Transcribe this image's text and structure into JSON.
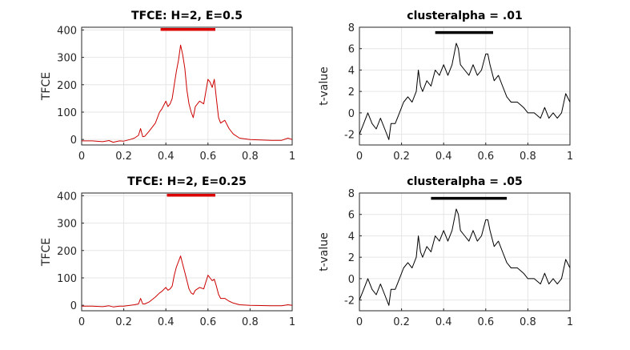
{
  "chart_data": [
    {
      "type": "line",
      "title": "TFCE: H=2, E=0.5",
      "xlabel": "",
      "ylabel": "TFCE",
      "xlim": [
        0,
        1
      ],
      "ylim": [
        -20,
        410
      ],
      "xticks": [
        "0",
        "0.2",
        "0.4",
        "0.6",
        "0.8",
        "1"
      ],
      "yticks": [
        "0",
        "100",
        "200",
        "300",
        "400"
      ],
      "grid": true,
      "line_color": "#cc0000",
      "bar_color": "#dd0000",
      "significance_bar": [
        0.375,
        0.635
      ],
      "bar_level": 402,
      "series": [
        {
          "name": "TFCE",
          "x": [
            0,
            0.05,
            0.1,
            0.13,
            0.15,
            0.18,
            0.2,
            0.23,
            0.25,
            0.27,
            0.28,
            0.29,
            0.3,
            0.32,
            0.35,
            0.37,
            0.38,
            0.4,
            0.41,
            0.42,
            0.43,
            0.44,
            0.45,
            0.46,
            0.47,
            0.48,
            0.49,
            0.5,
            0.51,
            0.52,
            0.53,
            0.54,
            0.56,
            0.58,
            0.6,
            0.61,
            0.62,
            0.63,
            0.64,
            0.65,
            0.66,
            0.68,
            0.7,
            0.72,
            0.75,
            0.8,
            0.85,
            0.9,
            0.95,
            0.98,
            1.0
          ],
          "y": [
            -5,
            -5,
            -8,
            -4,
            -10,
            -5,
            -6,
            0,
            5,
            15,
            40,
            10,
            12,
            30,
            60,
            100,
            110,
            140,
            120,
            130,
            150,
            200,
            250,
            290,
            345,
            310,
            260,
            180,
            130,
            100,
            80,
            120,
            140,
            130,
            220,
            210,
            190,
            220,
            150,
            80,
            60,
            70,
            40,
            20,
            5,
            0,
            -2,
            -3,
            -3,
            5,
            0
          ]
        }
      ]
    },
    {
      "type": "line",
      "title": "clusteralpha = .01",
      "xlabel": "",
      "ylabel": "t-value",
      "xlim": [
        0,
        1
      ],
      "ylim": [
        -3,
        8
      ],
      "xticks": [
        "0",
        "0.2",
        "0.4",
        "0.6",
        "0.8",
        "1"
      ],
      "yticks": [
        "-2",
        "0",
        "2",
        "4",
        "6",
        "8"
      ],
      "grid": true,
      "line_color": "#000000",
      "bar_color": "#000000",
      "significance_bar": [
        0.36,
        0.635
      ],
      "bar_level": 7.5,
      "series": [
        {
          "name": "t-value",
          "x": [
            0,
            0.02,
            0.04,
            0.06,
            0.08,
            0.1,
            0.12,
            0.14,
            0.15,
            0.17,
            0.19,
            0.21,
            0.23,
            0.25,
            0.27,
            0.28,
            0.29,
            0.3,
            0.32,
            0.34,
            0.36,
            0.38,
            0.4,
            0.42,
            0.44,
            0.46,
            0.47,
            0.48,
            0.5,
            0.52,
            0.54,
            0.56,
            0.58,
            0.6,
            0.61,
            0.62,
            0.64,
            0.66,
            0.68,
            0.7,
            0.72,
            0.75,
            0.78,
            0.8,
            0.83,
            0.86,
            0.88,
            0.9,
            0.92,
            0.94,
            0.96,
            0.98,
            1.0
          ],
          "y": [
            -2,
            -1,
            0,
            -1,
            -1.5,
            -0.5,
            -1.5,
            -2.5,
            -1,
            -1,
            0,
            1,
            1.5,
            1,
            2,
            4,
            2.5,
            2,
            3,
            2.5,
            4,
            3.5,
            4.5,
            3.5,
            4.5,
            6.5,
            6,
            4.5,
            4,
            3.5,
            4.5,
            3.5,
            4,
            5.5,
            5.5,
            4.5,
            3,
            3.5,
            2.5,
            1.5,
            1,
            1,
            0.5,
            0,
            0,
            -0.5,
            0.5,
            -0.5,
            0,
            -0.5,
            0,
            1.8,
            1
          ]
        }
      ]
    },
    {
      "type": "line",
      "title": "TFCE: H=2, E=0.25",
      "xlabel": "",
      "ylabel": "TFCE",
      "xlim": [
        0,
        1
      ],
      "ylim": [
        -20,
        410
      ],
      "xticks": [
        "0",
        "0.2",
        "0.4",
        "0.6",
        "0.8",
        "1"
      ],
      "yticks": [
        "0",
        "100",
        "200",
        "300",
        "400"
      ],
      "grid": true,
      "line_color": "#cc0000",
      "bar_color": "#dd0000",
      "significance_bar": [
        0.405,
        0.635
      ],
      "bar_level": 402,
      "series": [
        {
          "name": "TFCE",
          "x": [
            0,
            0.05,
            0.1,
            0.13,
            0.15,
            0.18,
            0.2,
            0.23,
            0.25,
            0.27,
            0.28,
            0.29,
            0.3,
            0.32,
            0.35,
            0.37,
            0.38,
            0.4,
            0.41,
            0.42,
            0.43,
            0.44,
            0.45,
            0.46,
            0.47,
            0.48,
            0.49,
            0.5,
            0.51,
            0.52,
            0.53,
            0.54,
            0.56,
            0.58,
            0.6,
            0.61,
            0.62,
            0.63,
            0.64,
            0.65,
            0.66,
            0.68,
            0.7,
            0.72,
            0.75,
            0.8,
            0.85,
            0.9,
            0.95,
            0.98,
            1.0
          ],
          "y": [
            -3,
            -3,
            -5,
            -2,
            -6,
            -3,
            -3,
            0,
            2,
            5,
            25,
            5,
            5,
            12,
            30,
            45,
            50,
            65,
            55,
            60,
            70,
            110,
            140,
            160,
            180,
            150,
            120,
            90,
            60,
            45,
            40,
            55,
            65,
            60,
            110,
            100,
            90,
            95,
            70,
            40,
            25,
            25,
            15,
            8,
            2,
            0,
            -1,
            -2,
            -2,
            2,
            0
          ]
        }
      ]
    },
    {
      "type": "line",
      "title": "clusteralpha = .05",
      "xlabel": "",
      "ylabel": "t-value",
      "xlim": [
        0,
        1
      ],
      "ylim": [
        -3,
        8
      ],
      "xticks": [
        "0",
        "0.2",
        "0.4",
        "0.6",
        "0.8",
        "1"
      ],
      "yticks": [
        "-2",
        "0",
        "2",
        "4",
        "6",
        "8"
      ],
      "grid": true,
      "line_color": "#000000",
      "bar_color": "#000000",
      "significance_bar": [
        0.34,
        0.7
      ],
      "bar_level": 7.5,
      "series": [
        {
          "name": "t-value",
          "x": [
            0,
            0.02,
            0.04,
            0.06,
            0.08,
            0.1,
            0.12,
            0.14,
            0.15,
            0.17,
            0.19,
            0.21,
            0.23,
            0.25,
            0.27,
            0.28,
            0.29,
            0.3,
            0.32,
            0.34,
            0.36,
            0.38,
            0.4,
            0.42,
            0.44,
            0.46,
            0.47,
            0.48,
            0.5,
            0.52,
            0.54,
            0.56,
            0.58,
            0.6,
            0.61,
            0.62,
            0.64,
            0.66,
            0.68,
            0.7,
            0.72,
            0.75,
            0.78,
            0.8,
            0.83,
            0.86,
            0.88,
            0.9,
            0.92,
            0.94,
            0.96,
            0.98,
            1.0
          ],
          "y": [
            -2,
            -1,
            0,
            -1,
            -1.5,
            -0.5,
            -1.5,
            -2.5,
            -1,
            -1,
            0,
            1,
            1.5,
            1,
            2,
            4,
            2.5,
            2,
            3,
            2.5,
            4,
            3.5,
            4.5,
            3.5,
            4.5,
            6.5,
            6,
            4.5,
            4,
            3.5,
            4.5,
            3.5,
            4,
            5.5,
            5.5,
            4.5,
            3,
            3.5,
            2.5,
            1.5,
            1,
            1,
            0.5,
            0,
            0,
            -0.5,
            0.5,
            -0.5,
            0,
            -0.5,
            0,
            1.8,
            1
          ]
        }
      ]
    }
  ]
}
